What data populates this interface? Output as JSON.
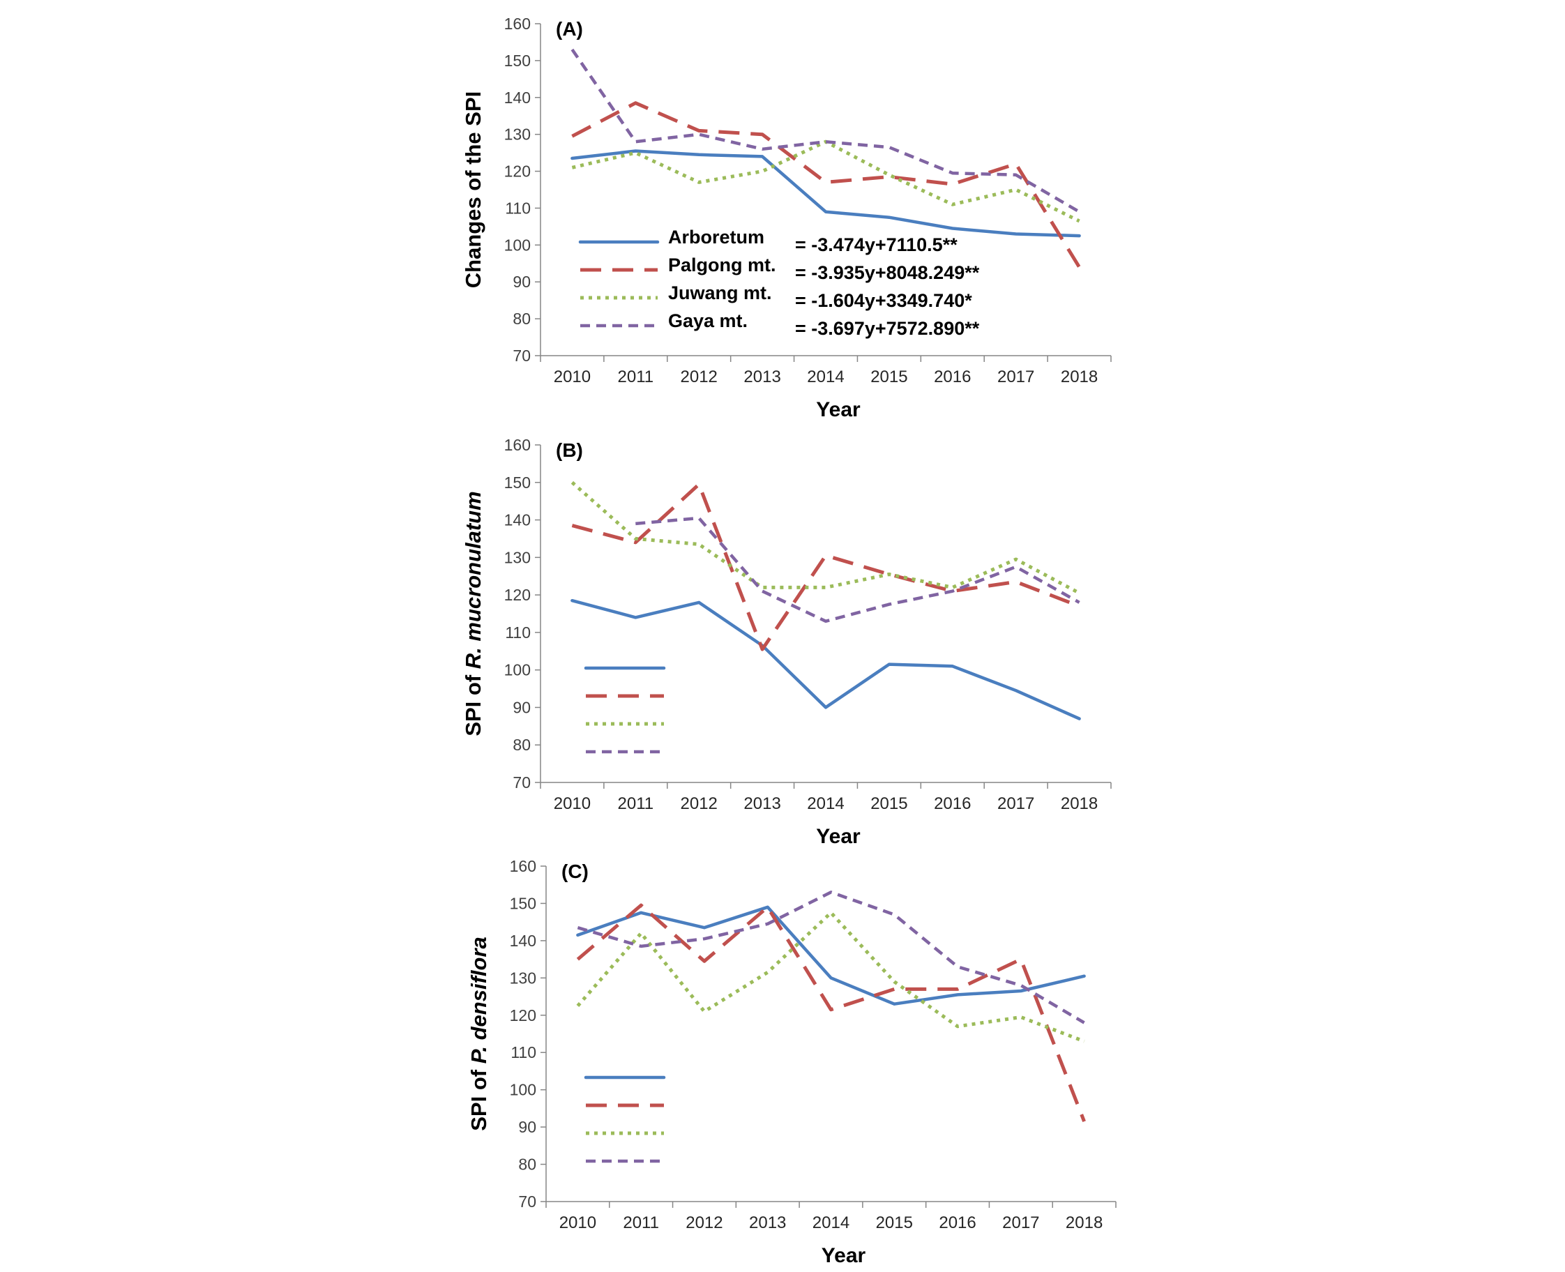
{
  "chart_data": [
    {
      "type": "line",
      "panel_label": "(A)",
      "xlabel": "Year",
      "ylabel": "Changes of the SPI",
      "ylabel_italic": "",
      "ylim": [
        70,
        160
      ],
      "yticks": [
        70,
        80,
        90,
        100,
        110,
        120,
        130,
        140,
        150,
        160
      ],
      "categories": [
        "2010",
        "2011",
        "2012",
        "2013",
        "2014",
        "2015",
        "2016",
        "2017",
        "2018"
      ],
      "series": [
        {
          "name": "Arboretum",
          "style": "solid",
          "color": "#4a7ebf",
          "equation": "= -3.474y+7110.5**",
          "values": [
            123.5,
            125.5,
            124.5,
            124,
            109,
            107.5,
            104.5,
            103,
            102.5
          ]
        },
        {
          "name": "Palgong mt.",
          "style": "longdash",
          "color": "#c0504d",
          "equation": "= -3.935y+8048.249**",
          "values": [
            129.5,
            138.5,
            131,
            130,
            117,
            118.5,
            116.5,
            122,
            94
          ]
        },
        {
          "name": "Juwang mt.",
          "style": "dotted",
          "color": "#9bbb59",
          "equation": "= -1.604y+3349.740*",
          "values": [
            121,
            125,
            117,
            120,
            128,
            119,
            111,
            115,
            106.5
          ]
        },
        {
          "name": "Gaya mt.",
          "style": "shortdash",
          "color": "#8064a2",
          "equation": "= -3.697y+7572.890**",
          "values": [
            153,
            128,
            130,
            126,
            128,
            126.5,
            119.5,
            119,
            109
          ]
        }
      ]
    },
    {
      "type": "line",
      "panel_label": "(B)",
      "xlabel": "Year",
      "ylabel": "SPI of",
      "ylabel_italic": "R. mucronulatum",
      "ylim": [
        70,
        160
      ],
      "yticks": [
        70,
        80,
        90,
        100,
        110,
        120,
        130,
        140,
        150,
        160
      ],
      "categories": [
        "2010",
        "2011",
        "2012",
        "2013",
        "2014",
        "2015",
        "2016",
        "2017",
        "2018"
      ],
      "series": [
        {
          "style": "solid",
          "color": "#4a7ebf",
          "values": [
            118.5,
            114,
            118,
            106.5,
            90,
            101.5,
            101,
            94.5,
            87
          ]
        },
        {
          "style": "longdash",
          "color": "#c0504d",
          "values": [
            138.5,
            134,
            149.5,
            105.5,
            130.5,
            125.5,
            121,
            123.5,
            117
          ]
        },
        {
          "style": "dotted",
          "color": "#9bbb59",
          "values": [
            150,
            135,
            133.5,
            122,
            122,
            125.5,
            122,
            129.5,
            120.5
          ]
        },
        {
          "style": "shortdash",
          "color": "#8064a2",
          "values": null
        },
        {
          "style": "shortdash",
          "color": "#8064a2",
          "values": [
            null,
            139,
            140.5,
            121,
            113,
            117.5,
            121,
            127.5,
            118
          ]
        }
      ]
    },
    {
      "type": "line",
      "panel_label": "(C)",
      "xlabel": "Year",
      "ylabel": "SPI of",
      "ylabel_italic": "P. densiflora",
      "ylim": [
        70,
        160
      ],
      "yticks": [
        70,
        80,
        90,
        100,
        110,
        120,
        130,
        140,
        150,
        160
      ],
      "categories": [
        "2010",
        "2011",
        "2012",
        "2013",
        "2014",
        "2015",
        "2016",
        "2017",
        "2018"
      ],
      "series": [
        {
          "style": "solid",
          "color": "#4a7ebf",
          "values": [
            141.5,
            147.5,
            143.5,
            149,
            130,
            123,
            125.5,
            126.5,
            130.5
          ]
        },
        {
          "style": "longdash",
          "color": "#c0504d",
          "values": [
            135,
            149.5,
            134.5,
            149,
            121.5,
            127,
            127,
            135,
            91.5
          ]
        },
        {
          "style": "dotted",
          "color": "#9bbb59",
          "values": [
            122.5,
            142,
            121,
            131.5,
            147.5,
            129,
            117,
            119.5,
            113
          ]
        },
        {
          "style": "shortdash",
          "color": "#8064a2",
          "values": [
            143.5,
            138.5,
            140.5,
            144.5,
            153,
            147,
            133,
            128,
            118
          ]
        }
      ]
    }
  ]
}
